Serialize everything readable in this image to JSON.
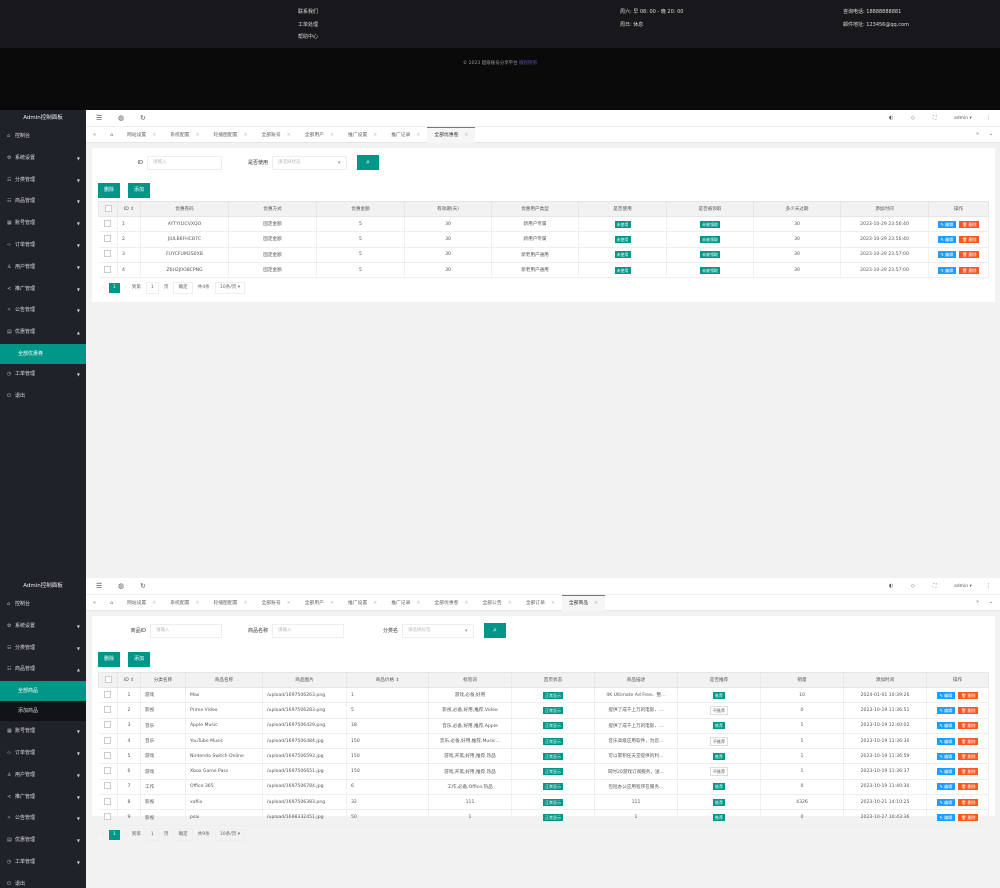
{
  "footer": {
    "col1": [
      "联系我们",
      "工单处理",
      "帮助中心"
    ],
    "col3": [
      "周六: 早 08: 00 - 晚 20: 00",
      "周日: 休息"
    ],
    "col4": [
      "咨询电话: 18888888881",
      "邮件地址: 123456@qq.com"
    ],
    "copyright": "© 2023 超级账号分享平台",
    "copyright_link": "版权所有"
  },
  "colors": {
    "sidebar": "#20222a",
    "accent": "#009688",
    "edit": "#1e9fff",
    "delete": "#ff5722"
  },
  "panels": [
    {
      "sidebar": {
        "title": "Admin控制面板",
        "items": [
          {
            "label": "控制台",
            "icon": "home-icon",
            "arrow": ""
          },
          {
            "label": "系统设置",
            "icon": "gear-icon",
            "arrow": "down"
          },
          {
            "label": "分类管理",
            "icon": "list-icon",
            "arrow": "down"
          },
          {
            "label": "商品管理",
            "icon": "list-icon",
            "arrow": "down"
          },
          {
            "label": "账号管理",
            "icon": "grid-icon",
            "arrow": "down"
          },
          {
            "label": "订单管理",
            "icon": "code-icon",
            "arrow": "down"
          },
          {
            "label": "用户管理",
            "icon": "user-icon",
            "arrow": "down"
          },
          {
            "label": "推广管理",
            "icon": "share-icon",
            "arrow": "down"
          },
          {
            "label": "公告管理",
            "icon": "star-icon",
            "arrow": "down"
          },
          {
            "label": "优惠管理",
            "icon": "calendar-icon",
            "arrow": "up",
            "sub": [
              {
                "label": "全部优惠券",
                "active": true
              }
            ]
          },
          {
            "label": "工单管理",
            "icon": "clock-icon",
            "arrow": "down"
          },
          {
            "label": "退出",
            "icon": "logout-icon",
            "arrow": ""
          }
        ]
      },
      "header": {
        "user": "admin"
      },
      "tabs": [
        "网站设置",
        "系统配置",
        "轮播图配置",
        "全部账号",
        "全部用户",
        "推广设置",
        "推广记录",
        "全部优惠卷"
      ],
      "active_tab": 7,
      "search": [
        {
          "label": "ID",
          "placeholder": "请输入"
        },
        {
          "label": "是否使用",
          "placeholder": "请选择状态",
          "select": true
        }
      ],
      "buttons": {
        "delete": "删除",
        "add": "添加"
      },
      "table": {
        "columns": [
          "ID ⇕",
          "优惠卷码",
          "优惠方式",
          "优惠金额",
          "有效期(天)",
          "优惠用户类型",
          "是否使用",
          "是否被领取",
          "多少天过期",
          "添加时间",
          "操作"
        ],
        "rows": [
          [
            "1",
            "AYTYI1ICVXQO",
            "固定金额",
            "5",
            "30",
            "新用户专属",
            {
              "badge": "未使用"
            },
            {
              "badge": "未被领取"
            },
            "30",
            "2023-10-29 23:56:40",
            "ops"
          ],
          [
            "2",
            "JIULB6FHCB7C",
            "固定金额",
            "5",
            "30",
            "新用户专属",
            {
              "badge": "未使用"
            },
            {
              "badge": "未被领取"
            },
            "30",
            "2023-10-29 23:56:40",
            "ops"
          ],
          [
            "3",
            "FUYCFUM2S0XB",
            "固定金额",
            "5",
            "30",
            "新老用户通用",
            {
              "badge": "未使用"
            },
            {
              "badge": "未被领取"
            },
            "30",
            "2023-10-29 23:57:00",
            "ops"
          ],
          [
            "4",
            "Z6H2J0O8CPNG",
            "固定金额",
            "5",
            "30",
            "新老用户通用",
            {
              "badge": "未使用"
            },
            {
              "badge": "未被领取"
            },
            "30",
            "2023-10-29 23:57:00",
            "ops"
          ]
        ],
        "edit_label": "✎ 编辑",
        "delete_label": "🗑 删除"
      },
      "pagination": {
        "page": "1",
        "goto": "到第",
        "page_unit": "页",
        "confirm": "确定",
        "total": "共4条",
        "per_page": "10条/页 ▾"
      }
    },
    {
      "sidebar": {
        "title": "Admin控制面板",
        "items": [
          {
            "label": "控制台",
            "icon": "home-icon",
            "arrow": ""
          },
          {
            "label": "系统设置",
            "icon": "gear-icon",
            "arrow": "down"
          },
          {
            "label": "分类管理",
            "icon": "list-icon",
            "arrow": "down"
          },
          {
            "label": "商品管理",
            "icon": "list-icon",
            "arrow": "up",
            "sub": [
              {
                "label": "全部商品",
                "active": true
              },
              {
                "label": "添加商品",
                "active": false
              }
            ]
          },
          {
            "label": "账号管理",
            "icon": "grid-icon",
            "arrow": "down"
          },
          {
            "label": "订单管理",
            "icon": "code-icon",
            "arrow": "down"
          },
          {
            "label": "用户管理",
            "icon": "user-icon",
            "arrow": "down"
          },
          {
            "label": "推广管理",
            "icon": "share-icon",
            "arrow": "down"
          },
          {
            "label": "公告管理",
            "icon": "star-icon",
            "arrow": "down"
          },
          {
            "label": "优惠管理",
            "icon": "calendar-icon",
            "arrow": "down"
          },
          {
            "label": "工单管理",
            "icon": "clock-icon",
            "arrow": "down"
          },
          {
            "label": "退出",
            "icon": "logout-icon",
            "arrow": ""
          }
        ]
      },
      "header": {
        "user": "admin"
      },
      "tabs": [
        "网站设置",
        "系统配置",
        "轮播图配置",
        "全部账号",
        "全部用户",
        "推广设置",
        "推广记录",
        "全部优惠卷",
        "全部公告",
        "全部订单",
        "全部商品"
      ],
      "active_tab": 10,
      "search": [
        {
          "label": "商品ID",
          "placeholder": "请输入"
        },
        {
          "label": "商品名称",
          "placeholder": "请输入"
        },
        {
          "label": "分类名",
          "placeholder": "请选择标签",
          "select": true
        }
      ],
      "buttons": {
        "delete": "删除",
        "add": "添加"
      },
      "table": {
        "columns": [
          "ID ⇕",
          "分类名称",
          "商品名称",
          "商品图片",
          "商品价格 ⇕",
          "标签词",
          "首页状态",
          "商品描述",
          "是否推荐",
          "销量",
          "添加时间",
          "操作"
        ],
        "rows": [
          [
            "1",
            "游戏",
            "Max",
            "/upload/1697506263.png",
            "1",
            "游戏,必备,好用",
            {
              "badge": "正常显示"
            },
            "4K Ultimate Ad Free、整…",
            {
              "badge": "推荐"
            },
            "10",
            "2024-01-01 10:39:26",
            "ops"
          ],
          [
            "2",
            "影视",
            "Prime Video",
            "/upload/1697506283.png",
            "5",
            "影视,必备,好用,推荐,Video",
            {
              "badge": "正常显示"
            },
            "提供了成千上万的电影、…",
            {
              "badge": "不推荐",
              "outline": true
            },
            "0",
            "2023-10-19 11:36:51",
            "ops"
          ],
          [
            "3",
            "音乐",
            "Apple Music",
            "/upload/1697506429.png",
            "18",
            "音乐,必备,好用,推荐,Apple",
            {
              "badge": "正常显示"
            },
            "提供了成千上万的电影、…",
            {
              "badge": "推荐"
            },
            "1",
            "2023-10-19 12:40:02",
            "ops"
          ],
          [
            "4",
            "音乐",
            "YouTube Music",
            "/upload/1697506484.jpg",
            "150",
            "音乐,必备,好用,推荐,Music…",
            {
              "badge": "正常显示"
            },
            "音乐高级应用软件，为您…",
            {
              "badge": "不推荐",
              "outline": true
            },
            "1",
            "2023-10-19 11:36:30",
            "ops"
          ],
          [
            "5",
            "游戏",
            "Nintendo Switch Online",
            "/upload/1697506593.jpg",
            "150",
            "游戏,开黑,好用,推荐,热品",
            {
              "badge": "正常显示"
            },
            "可以累积任天堂提供的利…",
            {
              "badge": "推荐"
            },
            "1",
            "2023-10-19 11:36:59",
            "ops"
          ],
          [
            "6",
            "游戏",
            "Xbox Game Pass",
            "/upload/1697506651.jpg",
            "150",
            "游戏,开黑,好用,推荐,热品",
            {
              "badge": "正常显示"
            },
            "同时20游戏订阅服务，送…",
            {
              "badge": "不推荐",
              "outline": true
            },
            "1",
            "2023-10-19 11:36:37",
            "ops"
          ],
          [
            "7",
            "工作",
            "Office 365",
            "/upload/1697506784.jpg",
            "6",
            "工作,必备,Office,热品",
            {
              "badge": "正常显示"
            },
            "包括办公应用程序在服务…",
            {
              "badge": "推荐"
            },
            "0",
            "2023-10-19 11:40:30",
            "ops"
          ],
          [
            "8",
            "影视",
            "xaflix",
            "/upload/1697506383.png",
            "32",
            "111",
            {
              "badge": "正常显示"
            },
            "111",
            {
              "badge": "推荐"
            },
            "4326",
            "2023-10-21 14:10:25",
            "ops"
          ],
          [
            "9",
            "影视",
            "psai",
            "/upload/1698332451.jpg",
            "50",
            "1",
            {
              "badge": "正常显示"
            },
            "1",
            {
              "badge": "推荐"
            },
            "0",
            "2023-10-27 10:43:36",
            "ops"
          ]
        ],
        "edit_label": "✎ 编辑",
        "delete_label": "🗑 删除"
      },
      "pagination": {
        "page": "1",
        "goto": "到第",
        "page_unit": "页",
        "confirm": "确定",
        "total": "共9条",
        "per_page": "10条/页 ▾"
      }
    }
  ]
}
